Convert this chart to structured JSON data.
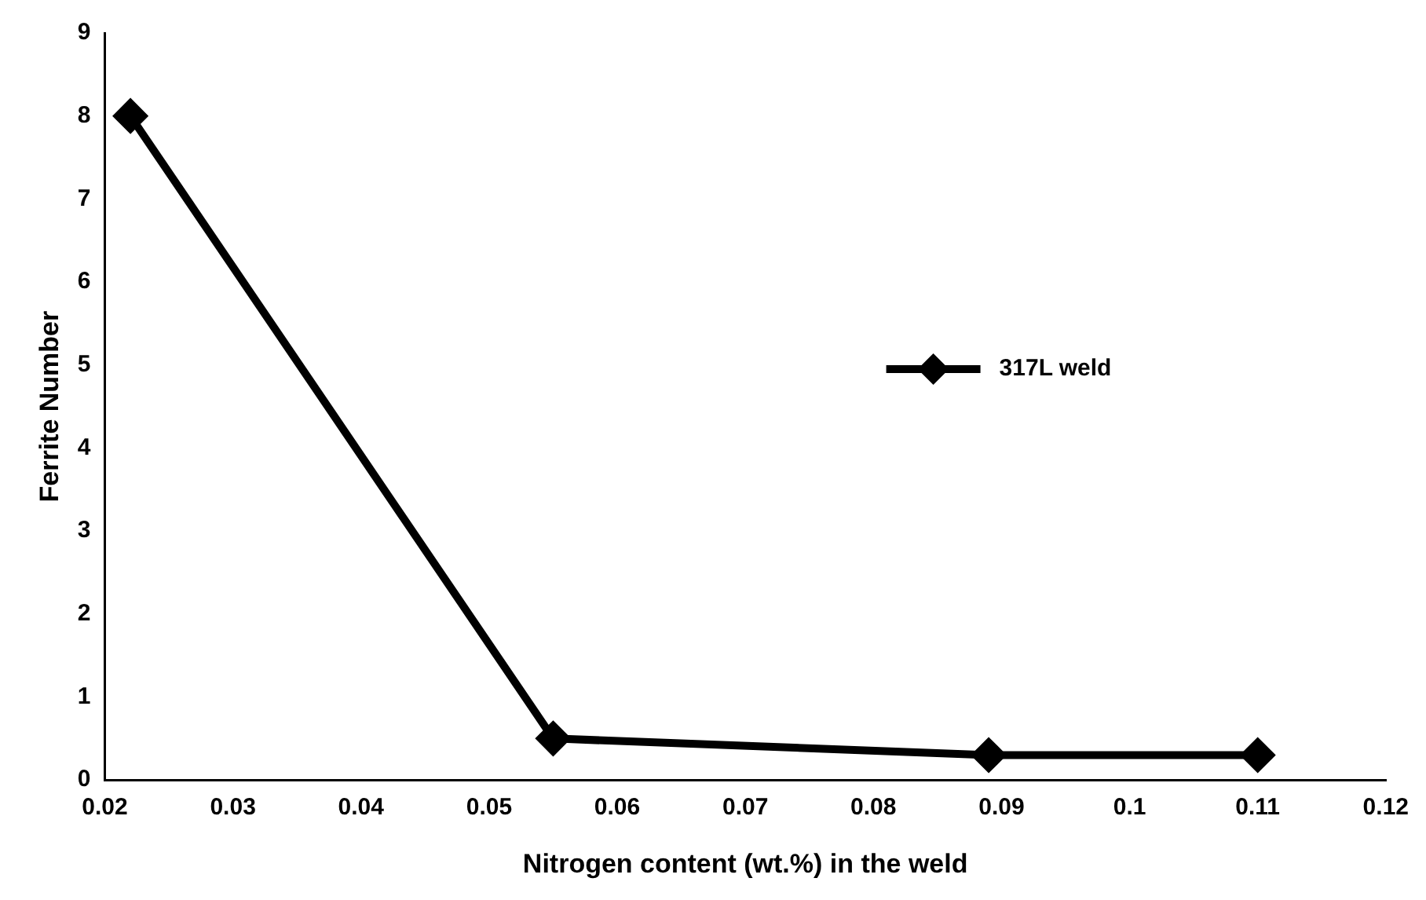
{
  "chart_data": {
    "type": "line",
    "xlabel": "Nitrogen content (wt.%) in the weld",
    "ylabel": "Ferrite Number",
    "x": [
      0.022,
      0.055,
      0.089,
      0.11
    ],
    "series": [
      {
        "name": "317L weld",
        "color": "#000000",
        "values": [
          8,
          0.5,
          0.3,
          0.3
        ]
      }
    ],
    "xlim": [
      0.02,
      0.12
    ],
    "xticks": [
      0.02,
      0.03,
      0.04,
      0.05,
      0.06,
      0.07,
      0.08,
      0.09,
      0.1,
      0.11,
      0.12
    ],
    "ylim": [
      0,
      9
    ],
    "yticks": [
      0,
      1,
      2,
      3,
      4,
      5,
      6,
      7,
      8,
      9
    ],
    "grid": false,
    "legend": "right",
    "marker": "diamond",
    "line_style": "solid"
  }
}
